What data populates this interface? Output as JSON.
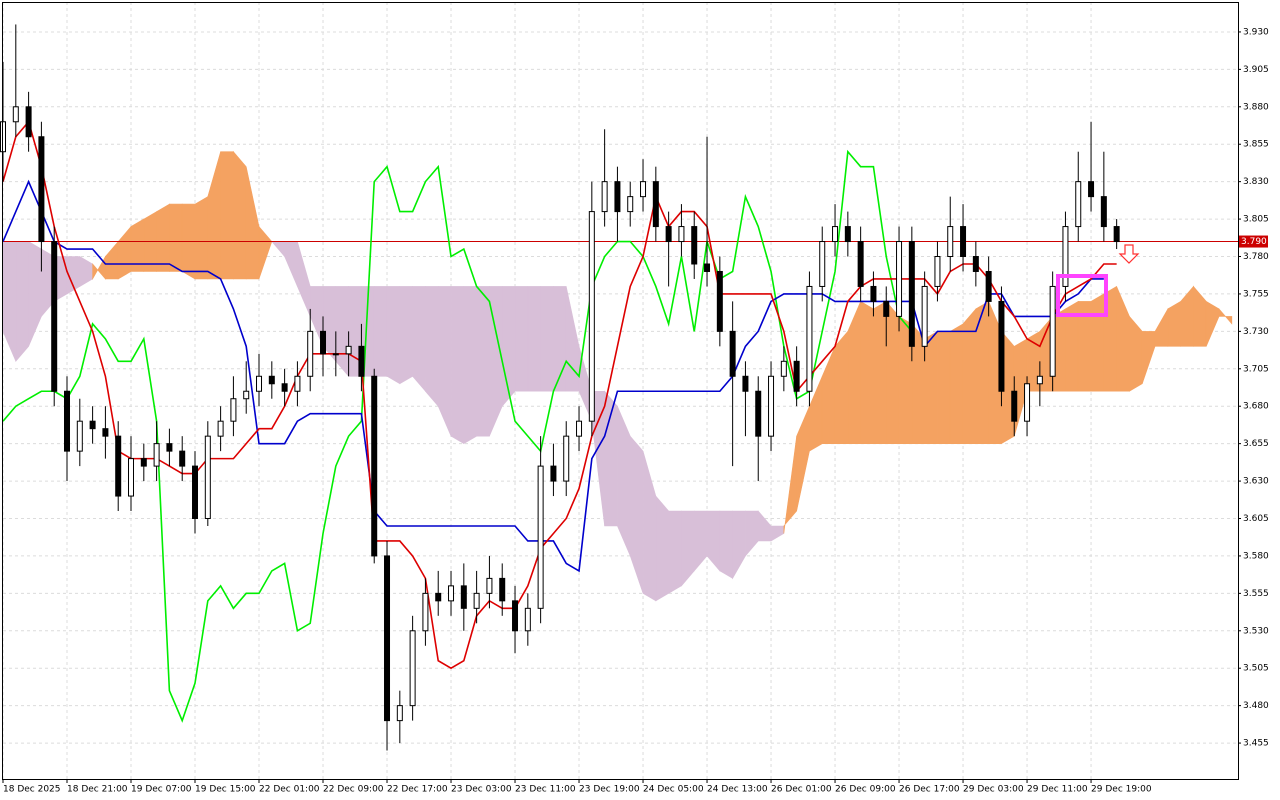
{
  "chart_data": {
    "type": "candlestick",
    "xlim": [
      0,
      96.48
    ],
    "ylim": [
      3.431,
      3.95
    ],
    "grid": true,
    "xticks": [
      {
        "value": 0,
        "label": "18 Dec 2025"
      },
      {
        "value": 5,
        "label": "18 Dec 21:00"
      },
      {
        "value": 10,
        "label": "19 Dec 07:00"
      },
      {
        "value": 15,
        "label": "19 Dec 15:00"
      },
      {
        "value": 20,
        "label": "22 Dec 01:00"
      },
      {
        "value": 25,
        "label": "22 Dec 09:00"
      },
      {
        "value": 30,
        "label": "22 Dec 17:00"
      },
      {
        "value": 35,
        "label": "23 Dec 03:00"
      },
      {
        "value": 40,
        "label": "23 Dec 11:00"
      },
      {
        "value": 45,
        "label": "23 Dec 19:00"
      },
      {
        "value": 50,
        "label": "24 Dec 05:00"
      },
      {
        "value": 55,
        "label": "24 Dec 13:00"
      },
      {
        "value": 60,
        "label": "26 Dec 01:00"
      },
      {
        "value": 65,
        "label": "26 Dec 09:00"
      },
      {
        "value": 70,
        "label": "26 Dec 17:00"
      },
      {
        "value": 75,
        "label": "29 Dec 03:00"
      },
      {
        "value": 80,
        "label": "29 Dec 11:00"
      },
      {
        "value": 85,
        "label": "29 Dec 19:00"
      }
    ],
    "yticks": [
      3.455,
      {
        "value": 3.48,
        "label": "3.480"
      },
      3.505,
      {
        "value": 3.53,
        "label": "3.530"
      },
      3.555,
      {
        "value": 3.58,
        "label": "3.580"
      },
      3.605,
      {
        "value": 3.63,
        "label": "3.630"
      },
      3.655,
      {
        "value": 3.68,
        "label": "3.680"
      },
      3.705,
      {
        "value": 3.73,
        "label": "3.730"
      },
      3.755,
      {
        "value": 3.78,
        "label": "3.780"
      },
      3.805,
      {
        "value": 3.83,
        "label": "3.830"
      },
      3.855,
      {
        "value": 3.88,
        "label": "3.880"
      },
      3.905,
      {
        "value": 3.93,
        "label": "3.930"
      }
    ],
    "last_price": {
      "value": 3.79,
      "label": "3.790",
      "color": "#cc0000"
    },
    "candles": {
      "up_color": "#ffffff",
      "down_color": "#000000",
      "open": [
        3.85,
        3.87,
        3.88,
        3.86,
        3.79,
        3.69,
        3.65,
        3.67,
        3.665,
        3.66,
        3.62,
        3.645,
        3.64,
        3.655,
        3.65,
        3.64,
        3.605,
        3.66,
        3.67,
        3.685,
        3.69,
        3.7,
        3.695,
        3.69,
        3.7,
        3.73,
        3.715,
        3.715,
        3.72,
        3.7,
        3.58,
        3.47,
        3.48,
        3.53,
        3.555,
        3.55,
        3.56,
        3.545,
        3.555,
        3.565,
        3.55,
        3.53,
        3.545,
        3.64,
        3.63,
        3.66,
        3.67,
        3.81,
        3.83,
        3.81,
        3.82,
        3.83,
        3.8,
        3.79,
        3.8,
        3.775,
        3.77,
        3.73,
        3.7,
        3.69,
        3.66,
        3.7,
        3.71,
        3.69,
        3.76,
        3.79,
        3.8,
        3.79,
        3.76,
        3.75,
        3.74,
        3.79,
        3.72,
        3.76,
        3.78,
        3.8,
        3.78,
        3.77,
        3.75,
        3.69,
        3.67,
        3.695,
        3.7,
        3.76,
        3.8,
        3.83,
        3.82,
        3.8,
        null,
        null,
        null,
        null,
        null,
        null,
        null,
        null,
        null
      ],
      "high": [
        3.91,
        3.935,
        3.89,
        3.87,
        3.8,
        3.7,
        3.685,
        3.68,
        3.68,
        3.67,
        3.66,
        3.655,
        3.67,
        3.665,
        3.66,
        3.65,
        3.67,
        3.68,
        3.7,
        3.71,
        3.715,
        3.71,
        3.705,
        3.71,
        3.745,
        3.74,
        3.73,
        3.73,
        3.735,
        3.705,
        3.59,
        3.49,
        3.54,
        3.565,
        3.57,
        3.57,
        3.575,
        3.57,
        3.58,
        3.575,
        3.56,
        3.555,
        3.66,
        3.655,
        3.67,
        3.68,
        3.83,
        3.865,
        3.84,
        3.83,
        3.845,
        3.84,
        3.81,
        3.815,
        3.81,
        3.86,
        3.78,
        3.75,
        3.71,
        3.7,
        3.71,
        3.72,
        3.72,
        3.77,
        3.8,
        3.815,
        3.81,
        3.8,
        3.77,
        3.76,
        3.8,
        3.8,
        3.77,
        3.79,
        3.82,
        3.815,
        3.79,
        3.78,
        3.76,
        3.7,
        3.7,
        3.71,
        3.77,
        3.81,
        3.85,
        3.87,
        3.85,
        3.805,
        null,
        null,
        null,
        null,
        null,
        null,
        null,
        null,
        null
      ],
      "low": [
        3.83,
        3.86,
        3.85,
        3.77,
        3.68,
        3.63,
        3.64,
        3.655,
        3.645,
        3.61,
        3.61,
        3.63,
        3.63,
        3.64,
        3.63,
        3.595,
        3.6,
        3.65,
        3.66,
        3.675,
        3.68,
        3.685,
        3.68,
        3.68,
        3.69,
        3.7,
        3.7,
        3.7,
        3.69,
        3.575,
        3.45,
        3.455,
        3.47,
        3.52,
        3.54,
        3.54,
        3.53,
        3.535,
        3.545,
        3.54,
        3.515,
        3.52,
        3.535,
        3.62,
        3.62,
        3.65,
        3.66,
        3.8,
        3.79,
        3.8,
        3.81,
        3.79,
        3.76,
        3.78,
        3.765,
        3.76,
        3.72,
        3.64,
        3.66,
        3.63,
        3.65,
        3.69,
        3.68,
        3.68,
        3.75,
        3.78,
        3.78,
        3.75,
        3.74,
        3.72,
        3.73,
        3.71,
        3.71,
        3.75,
        3.77,
        3.77,
        3.76,
        3.74,
        3.68,
        3.66,
        3.66,
        3.68,
        3.69,
        3.75,
        3.79,
        3.81,
        3.79,
        3.785,
        null,
        null,
        null,
        null,
        null,
        null,
        null,
        null,
        null
      ],
      "close": [
        3.87,
        3.88,
        3.86,
        3.79,
        3.69,
        3.65,
        3.67,
        3.665,
        3.66,
        3.62,
        3.645,
        3.64,
        3.655,
        3.65,
        3.64,
        3.605,
        3.66,
        3.67,
        3.685,
        3.69,
        3.7,
        3.695,
        3.69,
        3.7,
        3.73,
        3.715,
        3.715,
        3.72,
        3.7,
        3.58,
        3.47,
        3.48,
        3.53,
        3.555,
        3.55,
        3.56,
        3.545,
        3.555,
        3.565,
        3.55,
        3.53,
        3.545,
        3.64,
        3.63,
        3.66,
        3.67,
        3.81,
        3.83,
        3.81,
        3.82,
        3.83,
        3.8,
        3.79,
        3.8,
        3.775,
        3.77,
        3.73,
        3.7,
        3.69,
        3.66,
        3.7,
        3.71,
        3.69,
        3.76,
        3.79,
        3.8,
        3.79,
        3.76,
        3.75,
        3.74,
        3.79,
        3.72,
        3.76,
        3.78,
        3.8,
        3.78,
        3.77,
        3.75,
        3.69,
        3.67,
        3.695,
        3.7,
        3.76,
        3.8,
        3.83,
        3.82,
        3.8,
        3.79,
        null,
        null,
        null,
        null,
        null,
        null,
        null,
        null,
        null
      ]
    },
    "cloud": {
      "up_color": "#f4a261",
      "down_color": "#d8bfd8",
      "span_a": [
        3.73,
        3.71,
        3.72,
        3.74,
        3.75,
        3.755,
        3.76,
        3.765,
        3.78,
        3.79,
        3.8,
        3.805,
        3.81,
        3.815,
        3.815,
        3.815,
        3.82,
        3.85,
        3.85,
        3.84,
        3.8,
        3.79,
        3.78,
        3.76,
        3.74,
        3.72,
        3.71,
        3.7,
        3.7,
        3.7,
        3.7,
        3.695,
        3.7,
        3.69,
        3.68,
        3.66,
        3.655,
        3.66,
        3.66,
        3.68,
        3.69,
        3.69,
        3.69,
        3.69,
        3.69,
        3.69,
        3.67,
        3.6,
        3.6,
        3.58,
        3.555,
        3.55,
        3.555,
        3.56,
        3.57,
        3.58,
        3.57,
        3.565,
        3.58,
        3.59,
        3.59,
        3.595,
        3.66,
        3.68,
        3.7,
        3.72,
        3.73,
        3.75,
        3.745,
        3.75,
        3.74,
        3.735,
        3.725,
        3.73,
        3.73,
        3.735,
        3.745,
        3.75,
        3.73,
        3.72,
        3.725,
        3.73,
        3.74,
        3.745,
        3.75,
        3.75,
        3.755,
        3.76,
        3.74,
        3.73,
        3.73,
        3.745,
        3.75,
        3.76,
        3.75,
        3.745,
        3.735
      ],
      "span_b": [
        3.79,
        3.79,
        3.79,
        3.785,
        3.78,
        3.78,
        3.78,
        3.775,
        3.765,
        3.765,
        3.77,
        3.77,
        3.77,
        3.77,
        3.77,
        3.765,
        3.765,
        3.765,
        3.765,
        3.765,
        3.765,
        3.79,
        3.79,
        3.79,
        3.76,
        3.76,
        3.76,
        3.76,
        3.76,
        3.76,
        3.76,
        3.76,
        3.76,
        3.76,
        3.76,
        3.76,
        3.76,
        3.76,
        3.76,
        3.76,
        3.76,
        3.76,
        3.76,
        3.76,
        3.76,
        3.72,
        3.69,
        3.69,
        3.68,
        3.66,
        3.65,
        3.62,
        3.61,
        3.61,
        3.61,
        3.61,
        3.61,
        3.61,
        3.61,
        3.61,
        3.6,
        3.6,
        3.61,
        3.65,
        3.655,
        3.655,
        3.655,
        3.655,
        3.655,
        3.655,
        3.655,
        3.655,
        3.655,
        3.655,
        3.655,
        3.655,
        3.655,
        3.655,
        3.655,
        3.66,
        3.69,
        3.69,
        3.69,
        3.69,
        3.69,
        3.69,
        3.69,
        3.69,
        3.69,
        3.695,
        3.72,
        3.72,
        3.72,
        3.72,
        3.72,
        3.74,
        3.74
      ]
    },
    "lines": [
      {
        "color": "#00ee00",
        "values": [
          3.67,
          3.68,
          3.685,
          3.69,
          3.69,
          3.685,
          3.7,
          3.735,
          3.725,
          3.71,
          3.71,
          3.725,
          3.67,
          3.49,
          3.47,
          3.495,
          3.55,
          3.56,
          3.545,
          3.555,
          3.555,
          3.57,
          3.575,
          3.53,
          3.535,
          3.595,
          3.64,
          3.66,
          3.67,
          3.83,
          3.84,
          3.81,
          3.81,
          3.83,
          3.84,
          3.78,
          3.785,
          3.76,
          3.75,
          3.71,
          3.67,
          3.66,
          3.65,
          3.69,
          3.71,
          3.7,
          3.76,
          3.78,
          3.79,
          3.79,
          3.78,
          3.76,
          3.735,
          3.78,
          3.73,
          3.79,
          3.765,
          3.77,
          3.82,
          3.8,
          3.77,
          3.72,
          3.685,
          3.69,
          3.73,
          3.77,
          3.85,
          3.84,
          3.84,
          3.78,
          3.74,
          3.73,
          null,
          null,
          null,
          null,
          null,
          null,
          null,
          null,
          null,
          null,
          null,
          null,
          null,
          null,
          null,
          null,
          null,
          null,
          null,
          null,
          null,
          null,
          null,
          null,
          null
        ]
      },
      {
        "color": "#0000cc",
        "values": [
          3.79,
          3.81,
          3.83,
          3.81,
          3.79,
          3.785,
          3.785,
          3.785,
          3.775,
          3.775,
          3.775,
          3.775,
          3.775,
          3.775,
          3.77,
          3.77,
          3.77,
          3.765,
          3.745,
          3.72,
          3.655,
          3.655,
          3.655,
          3.67,
          3.675,
          3.675,
          3.675,
          3.675,
          3.675,
          3.61,
          3.6,
          3.6,
          3.6,
          3.6,
          3.6,
          3.6,
          3.6,
          3.6,
          3.6,
          3.6,
          3.6,
          3.59,
          3.59,
          3.59,
          3.575,
          3.57,
          3.645,
          3.66,
          3.69,
          3.69,
          3.69,
          3.69,
          3.69,
          3.69,
          3.69,
          3.69,
          3.69,
          3.7,
          3.72,
          3.73,
          3.75,
          3.755,
          3.755,
          3.755,
          3.755,
          3.75,
          3.75,
          3.75,
          3.75,
          3.75,
          3.75,
          3.75,
          3.72,
          3.73,
          3.73,
          3.73,
          3.73,
          3.755,
          3.755,
          3.74,
          3.74,
          3.74,
          3.74,
          3.75,
          3.755,
          3.765,
          3.765,
          null,
          null,
          null,
          null,
          null,
          null,
          null,
          null,
          null,
          null
        ]
      },
      {
        "color": "#dd0000",
        "values": [
          3.83,
          3.86,
          3.87,
          3.84,
          3.8,
          3.77,
          3.75,
          3.73,
          3.7,
          3.65,
          3.645,
          3.645,
          3.645,
          3.64,
          3.635,
          3.635,
          3.645,
          3.645,
          3.645,
          3.655,
          3.665,
          3.665,
          3.68,
          3.7,
          3.715,
          3.715,
          3.715,
          3.715,
          3.71,
          3.59,
          3.59,
          3.59,
          3.58,
          3.565,
          3.51,
          3.505,
          3.51,
          3.54,
          3.55,
          3.545,
          3.545,
          3.56,
          3.585,
          3.595,
          3.605,
          3.625,
          3.66,
          3.68,
          3.72,
          3.76,
          3.78,
          3.82,
          3.8,
          3.81,
          3.81,
          3.8,
          3.755,
          3.755,
          3.755,
          3.755,
          3.755,
          3.73,
          3.69,
          3.7,
          3.71,
          3.72,
          3.75,
          3.76,
          3.765,
          3.765,
          3.765,
          3.765,
          3.765,
          3.755,
          3.77,
          3.775,
          3.775,
          3.765,
          3.75,
          3.74,
          3.725,
          3.72,
          3.74,
          3.755,
          3.76,
          3.765,
          3.775,
          3.775,
          null,
          null,
          null,
          null,
          null,
          null,
          null,
          null,
          null
        ]
      }
    ]
  }
}
